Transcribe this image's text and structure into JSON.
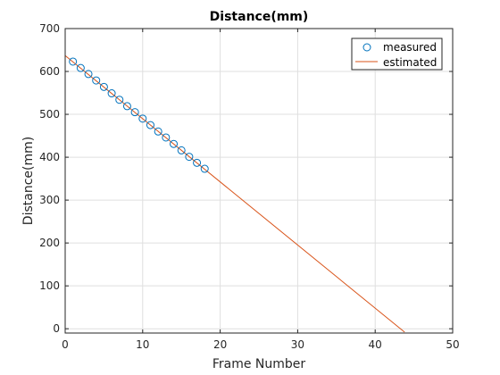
{
  "chart_data": {
    "type": "line",
    "title": "Distance(mm)",
    "xlabel": "Frame Number",
    "ylabel": "Distance(mm)",
    "xlim": [
      0,
      50
    ],
    "ylim": [
      -10,
      700
    ],
    "xticks": [
      0,
      10,
      20,
      30,
      40,
      50
    ],
    "yticks": [
      0,
      100,
      200,
      300,
      400,
      500,
      600,
      700
    ],
    "grid": true,
    "legend_position": "top-right",
    "series": [
      {
        "name": "measured",
        "kind": "scatter",
        "marker": "circle",
        "color": "#0072BD",
        "x": [
          1,
          2,
          3,
          4,
          5,
          6,
          7,
          8,
          9,
          10,
          11,
          12,
          13,
          14,
          15,
          16,
          17,
          18
        ],
        "y": [
          623,
          608,
          594,
          579,
          564,
          549,
          534,
          519,
          505,
          490,
          475,
          460,
          446,
          431,
          416,
          401,
          387,
          373
        ]
      },
      {
        "name": "estimated",
        "kind": "line",
        "color": "#D95319",
        "x": [
          0,
          43.8
        ],
        "y": [
          637,
          -8
        ]
      }
    ]
  }
}
